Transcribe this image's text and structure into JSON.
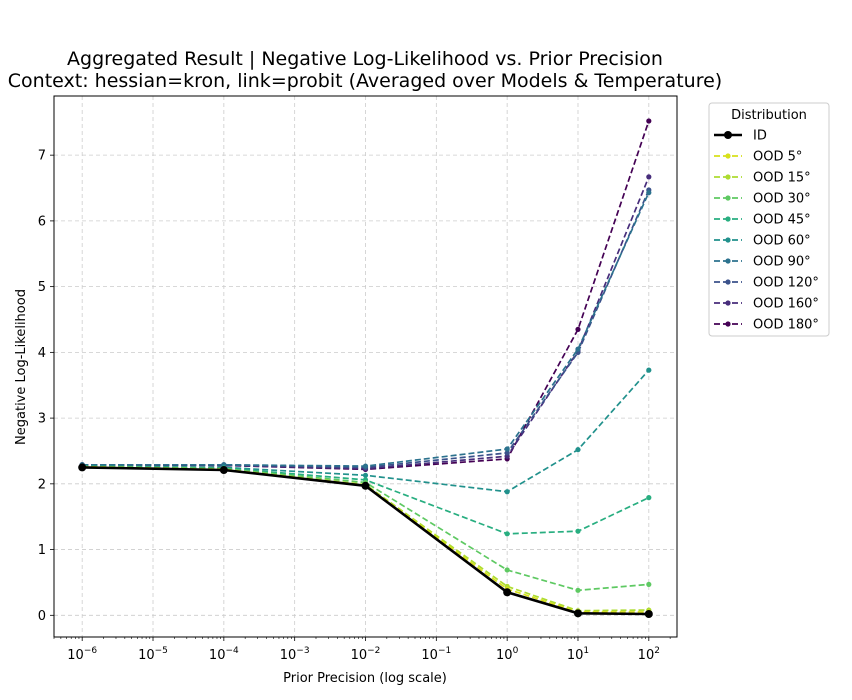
{
  "chart_data": {
    "type": "line",
    "title": "Aggregated Result | Negative Log-Likelihood vs. Prior Precision",
    "subtitle": "Context: hessian=kron, link=probit (Averaged over Models & Temperature)",
    "xlabel": "Prior Precision (log scale)",
    "ylabel": "Negative Log-Likelihood",
    "x_scale": "log",
    "x": [
      1e-06,
      0.0001,
      0.01,
      1,
      10,
      100
    ],
    "xlim": [
      4e-07,
      250
    ],
    "ylim": [
      -0.33,
      7.9
    ],
    "x_ticks": [
      {
        "value": 1e-06,
        "base": "10",
        "exp": "−6"
      },
      {
        "value": 1e-05,
        "base": "10",
        "exp": "−5"
      },
      {
        "value": 0.0001,
        "base": "10",
        "exp": "−4"
      },
      {
        "value": 0.001,
        "base": "10",
        "exp": "−3"
      },
      {
        "value": 0.01,
        "base": "10",
        "exp": "−2"
      },
      {
        "value": 0.1,
        "base": "10",
        "exp": "−1"
      },
      {
        "value": 1,
        "base": "10",
        "exp": "0"
      },
      {
        "value": 10,
        "base": "10",
        "exp": "1"
      },
      {
        "value": 100,
        "base": "10",
        "exp": "2"
      }
    ],
    "y_ticks": [
      {
        "value": 0,
        "label": "0"
      },
      {
        "value": 1,
        "label": "1"
      },
      {
        "value": 2,
        "label": "2"
      },
      {
        "value": 3,
        "label": "3"
      },
      {
        "value": 4,
        "label": "4"
      },
      {
        "value": 5,
        "label": "5"
      },
      {
        "value": 6,
        "label": "6"
      },
      {
        "value": 7,
        "label": "7"
      }
    ],
    "grid": true,
    "legend": {
      "title": "Distribution",
      "placement": "outside-right"
    },
    "series": [
      {
        "name": "OOD 180°",
        "color": "#440154",
        "style": "dashed",
        "values": [
          2.29,
          2.28,
          2.22,
          2.38,
          4.35,
          7.52
        ]
      },
      {
        "name": "OOD 160°",
        "color": "#472d7b",
        "style": "dashed",
        "values": [
          2.29,
          2.28,
          2.23,
          2.42,
          4.02,
          6.67
        ]
      },
      {
        "name": "OOD 120°",
        "color": "#3b528b",
        "style": "dashed",
        "values": [
          2.29,
          2.29,
          2.25,
          2.47,
          4.0,
          6.47
        ]
      },
      {
        "name": "OOD 90°",
        "color": "#2c728e",
        "style": "dashed",
        "values": [
          2.29,
          2.29,
          2.27,
          2.53,
          4.05,
          6.43
        ]
      },
      {
        "name": "OOD 60°",
        "color": "#21918c",
        "style": "dashed",
        "values": [
          2.27,
          2.25,
          2.13,
          1.88,
          2.52,
          3.73
        ]
      },
      {
        "name": "OOD 45°",
        "color": "#28ae80",
        "style": "dashed",
        "values": [
          2.27,
          2.24,
          2.06,
          1.24,
          1.28,
          1.79
        ]
      },
      {
        "name": "OOD 30°",
        "color": "#5ec962",
        "style": "dashed",
        "values": [
          2.26,
          2.23,
          2.02,
          0.69,
          0.38,
          0.47
        ]
      },
      {
        "name": "OOD 15°",
        "color": "#addc30",
        "style": "dashed",
        "values": [
          2.26,
          2.22,
          1.99,
          0.44,
          0.07,
          0.08
        ]
      },
      {
        "name": "OOD 5°",
        "color": "#d7e11a",
        "style": "dashed",
        "values": [
          2.26,
          2.22,
          1.98,
          0.4,
          0.05,
          0.05
        ]
      },
      {
        "name": "ID",
        "color": "#000000",
        "style": "solid",
        "values": [
          2.25,
          2.21,
          1.97,
          0.35,
          0.03,
          0.02
        ]
      }
    ],
    "legend_order": [
      "ID",
      "OOD 5°",
      "OOD 15°",
      "OOD 30°",
      "OOD 45°",
      "OOD 60°",
      "OOD 90°",
      "OOD 120°",
      "OOD 160°",
      "OOD 180°"
    ]
  }
}
